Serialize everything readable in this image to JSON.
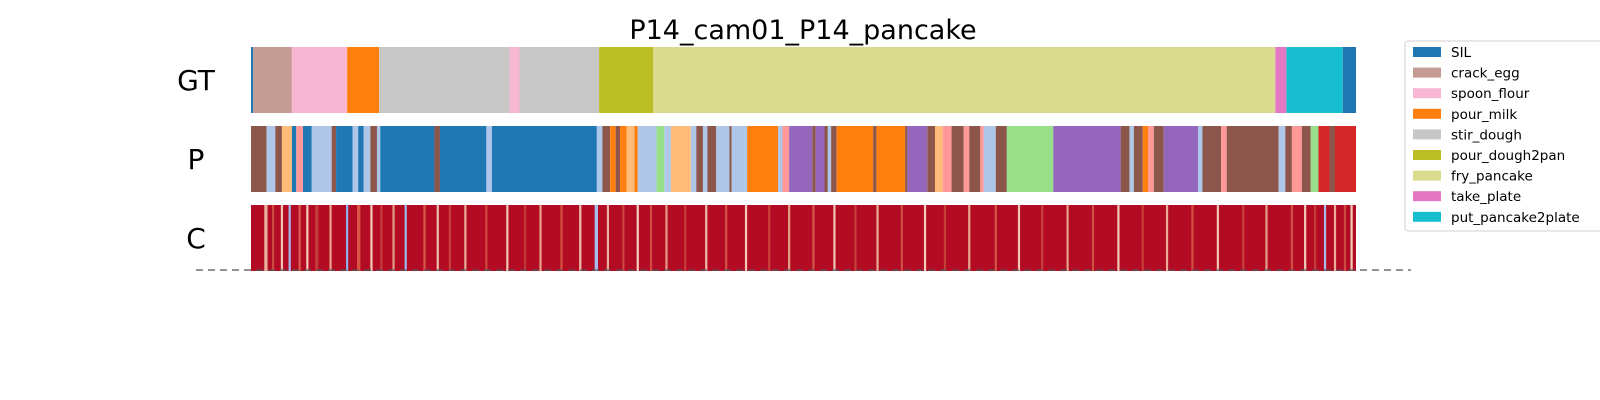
{
  "chart_data": {
    "type": "segmentation-bars",
    "title": "P14_cam01_P14_pancake",
    "x_range": [
      0,
      1
    ],
    "rows": [
      {
        "label": "GT",
        "segments": [
          {
            "start": 0.0,
            "end": 0.002,
            "color": "#1f77b4"
          },
          {
            "start": 0.002,
            "end": 0.037,
            "color": "#c49c94"
          },
          {
            "start": 0.037,
            "end": 0.087,
            "color": "#f7b6d2"
          },
          {
            "start": 0.087,
            "end": 0.116,
            "color": "#ff7f0e"
          },
          {
            "start": 0.116,
            "end": 0.234,
            "color": "#c7c7c7"
          },
          {
            "start": 0.234,
            "end": 0.243,
            "color": "#f7b6d2"
          },
          {
            "start": 0.243,
            "end": 0.315,
            "color": "#c7c7c7"
          },
          {
            "start": 0.315,
            "end": 0.364,
            "color": "#bcbd22"
          },
          {
            "start": 0.364,
            "end": 0.927,
            "color": "#dbdb8d"
          },
          {
            "start": 0.927,
            "end": 0.937,
            "color": "#e377c2"
          },
          {
            "start": 0.937,
            "end": 0.988,
            "color": "#17becf"
          },
          {
            "start": 0.988,
            "end": 1.0,
            "color": "#1f77b4"
          }
        ]
      },
      {
        "label": "P",
        "segments": [
          {
            "start": 0.0,
            "end": 0.014,
            "color": "#8c564b"
          },
          {
            "start": 0.014,
            "end": 0.022,
            "color": "#aec7e8"
          },
          {
            "start": 0.022,
            "end": 0.028,
            "color": "#8c564b"
          },
          {
            "start": 0.028,
            "end": 0.037,
            "color": "#ffbb78"
          },
          {
            "start": 0.037,
            "end": 0.041,
            "color": "#1f77b4"
          },
          {
            "start": 0.041,
            "end": 0.047,
            "color": "#ff9896"
          },
          {
            "start": 0.047,
            "end": 0.055,
            "color": "#1f77b4"
          },
          {
            "start": 0.055,
            "end": 0.073,
            "color": "#aec7e8"
          },
          {
            "start": 0.073,
            "end": 0.077,
            "color": "#8c564b"
          },
          {
            "start": 0.077,
            "end": 0.092,
            "color": "#1f77b4"
          },
          {
            "start": 0.092,
            "end": 0.097,
            "color": "#aec7e8"
          },
          {
            "start": 0.097,
            "end": 0.102,
            "color": "#1f77b4"
          },
          {
            "start": 0.102,
            "end": 0.108,
            "color": "#aec7e8"
          },
          {
            "start": 0.108,
            "end": 0.114,
            "color": "#8c564b"
          },
          {
            "start": 0.114,
            "end": 0.117,
            "color": "#aec7e8"
          },
          {
            "start": 0.117,
            "end": 0.166,
            "color": "#1f77b4"
          },
          {
            "start": 0.166,
            "end": 0.171,
            "color": "#8c564b"
          },
          {
            "start": 0.171,
            "end": 0.213,
            "color": "#1f77b4"
          },
          {
            "start": 0.213,
            "end": 0.218,
            "color": "#aec7e8"
          },
          {
            "start": 0.218,
            "end": 0.313,
            "color": "#1f77b4"
          },
          {
            "start": 0.313,
            "end": 0.318,
            "color": "#aec7e8"
          },
          {
            "start": 0.318,
            "end": 0.325,
            "color": "#8c564b"
          },
          {
            "start": 0.325,
            "end": 0.33,
            "color": "#ff7f0e"
          },
          {
            "start": 0.33,
            "end": 0.334,
            "color": "#8c564b"
          },
          {
            "start": 0.334,
            "end": 0.34,
            "color": "#ff7f0e"
          },
          {
            "start": 0.34,
            "end": 0.347,
            "color": "#ffbb78"
          },
          {
            "start": 0.347,
            "end": 0.35,
            "color": "#ff7f0e"
          },
          {
            "start": 0.35,
            "end": 0.367,
            "color": "#aec7e8"
          },
          {
            "start": 0.367,
            "end": 0.374,
            "color": "#98df8a"
          },
          {
            "start": 0.374,
            "end": 0.38,
            "color": "#aec7e8"
          },
          {
            "start": 0.38,
            "end": 0.398,
            "color": "#ffbb78"
          },
          {
            "start": 0.398,
            "end": 0.403,
            "color": "#aec7e8"
          },
          {
            "start": 0.403,
            "end": 0.409,
            "color": "#8c564b"
          },
          {
            "start": 0.409,
            "end": 0.413,
            "color": "#aec7e8"
          },
          {
            "start": 0.413,
            "end": 0.421,
            "color": "#8c564b"
          },
          {
            "start": 0.421,
            "end": 0.433,
            "color": "#aec7e8"
          },
          {
            "start": 0.433,
            "end": 0.435,
            "color": "#8c564b"
          },
          {
            "start": 0.435,
            "end": 0.449,
            "color": "#aec7e8"
          },
          {
            "start": 0.449,
            "end": 0.477,
            "color": "#ff7f0e"
          },
          {
            "start": 0.477,
            "end": 0.481,
            "color": "#aec7e8"
          },
          {
            "start": 0.481,
            "end": 0.487,
            "color": "#ff9896"
          },
          {
            "start": 0.487,
            "end": 0.508,
            "color": "#9467bd"
          },
          {
            "start": 0.508,
            "end": 0.511,
            "color": "#8c564b"
          },
          {
            "start": 0.511,
            "end": 0.519,
            "color": "#9467bd"
          },
          {
            "start": 0.519,
            "end": 0.522,
            "color": "#8c564b"
          },
          {
            "start": 0.522,
            "end": 0.525,
            "color": "#aec7e8"
          },
          {
            "start": 0.525,
            "end": 0.53,
            "color": "#8c564b"
          },
          {
            "start": 0.53,
            "end": 0.563,
            "color": "#ff7f0e"
          },
          {
            "start": 0.563,
            "end": 0.566,
            "color": "#8c564b"
          },
          {
            "start": 0.566,
            "end": 0.592,
            "color": "#ff7f0e"
          },
          {
            "start": 0.592,
            "end": 0.594,
            "color": "#8c564b"
          },
          {
            "start": 0.594,
            "end": 0.612,
            "color": "#9467bd"
          },
          {
            "start": 0.612,
            "end": 0.619,
            "color": "#8c564b"
          },
          {
            "start": 0.619,
            "end": 0.626,
            "color": "#ffbb78"
          },
          {
            "start": 0.626,
            "end": 0.634,
            "color": "#ff9896"
          },
          {
            "start": 0.634,
            "end": 0.645,
            "color": "#8c564b"
          },
          {
            "start": 0.645,
            "end": 0.65,
            "color": "#ff9896"
          },
          {
            "start": 0.65,
            "end": 0.66,
            "color": "#8c564b"
          },
          {
            "start": 0.66,
            "end": 0.663,
            "color": "#ff9896"
          },
          {
            "start": 0.663,
            "end": 0.674,
            "color": "#aec7e8"
          },
          {
            "start": 0.674,
            "end": 0.684,
            "color": "#8c564b"
          },
          {
            "start": 0.684,
            "end": 0.726,
            "color": "#98df8a"
          },
          {
            "start": 0.726,
            "end": 0.787,
            "color": "#9467bd"
          },
          {
            "start": 0.787,
            "end": 0.795,
            "color": "#8c564b"
          },
          {
            "start": 0.795,
            "end": 0.799,
            "color": "#aec7e8"
          },
          {
            "start": 0.799,
            "end": 0.807,
            "color": "#8c564b"
          },
          {
            "start": 0.807,
            "end": 0.812,
            "color": "#ff7f0e"
          },
          {
            "start": 0.812,
            "end": 0.817,
            "color": "#ff9896"
          },
          {
            "start": 0.817,
            "end": 0.826,
            "color": "#8c564b"
          },
          {
            "start": 0.826,
            "end": 0.857,
            "color": "#9467bd"
          },
          {
            "start": 0.857,
            "end": 0.861,
            "color": "#aec7e8"
          },
          {
            "start": 0.861,
            "end": 0.878,
            "color": "#8c564b"
          },
          {
            "start": 0.878,
            "end": 0.883,
            "color": "#ff9896"
          },
          {
            "start": 0.883,
            "end": 0.93,
            "color": "#8c564b"
          },
          {
            "start": 0.93,
            "end": 0.936,
            "color": "#aec7e8"
          },
          {
            "start": 0.936,
            "end": 0.942,
            "color": "#8c564b"
          },
          {
            "start": 0.942,
            "end": 0.951,
            "color": "#ff9896"
          },
          {
            "start": 0.951,
            "end": 0.959,
            "color": "#8c564b"
          },
          {
            "start": 0.959,
            "end": 0.966,
            "color": "#98df8a"
          },
          {
            "start": 0.966,
            "end": 0.976,
            "color": "#d62728"
          },
          {
            "start": 0.976,
            "end": 0.981,
            "color": "#8c564b"
          },
          {
            "start": 0.981,
            "end": 1.0,
            "color": "#d62728"
          }
        ]
      },
      {
        "label": "C",
        "colormap": "coolwarm",
        "segments": [
          {
            "start": 0.0,
            "end": 1.0,
            "color": "#b40b24"
          },
          {
            "start": 0.012,
            "end": 0.015,
            "color": "#e8b09b"
          },
          {
            "start": 0.019,
            "end": 0.021,
            "color": "#cd4c3f"
          },
          {
            "start": 0.027,
            "end": 0.029,
            "color": "#eec5b3"
          },
          {
            "start": 0.034,
            "end": 0.036,
            "color": "#a3bbf0"
          },
          {
            "start": 0.043,
            "end": 0.045,
            "color": "#d6604d"
          },
          {
            "start": 0.05,
            "end": 0.052,
            "color": "#f0cbb8"
          },
          {
            "start": 0.058,
            "end": 0.061,
            "color": "#c43c3a"
          },
          {
            "start": 0.071,
            "end": 0.073,
            "color": "#e9a58c"
          },
          {
            "start": 0.086,
            "end": 0.088,
            "color": "#8fb1ef"
          },
          {
            "start": 0.096,
            "end": 0.099,
            "color": "#d95845"
          },
          {
            "start": 0.108,
            "end": 0.11,
            "color": "#f2cbb7"
          },
          {
            "start": 0.117,
            "end": 0.119,
            "color": "#c93c3a"
          },
          {
            "start": 0.128,
            "end": 0.13,
            "color": "#e49b82"
          },
          {
            "start": 0.139,
            "end": 0.141,
            "color": "#9db9ee"
          },
          {
            "start": 0.156,
            "end": 0.158,
            "color": "#d45a48"
          },
          {
            "start": 0.168,
            "end": 0.17,
            "color": "#ebc0ab"
          },
          {
            "start": 0.179,
            "end": 0.181,
            "color": "#c7403c"
          },
          {
            "start": 0.193,
            "end": 0.195,
            "color": "#e8ad95"
          },
          {
            "start": 0.212,
            "end": 0.214,
            "color": "#ce4a3e"
          },
          {
            "start": 0.231,
            "end": 0.233,
            "color": "#f0c7b3"
          },
          {
            "start": 0.247,
            "end": 0.249,
            "color": "#c03a38"
          },
          {
            "start": 0.261,
            "end": 0.263,
            "color": "#e6a38a"
          },
          {
            "start": 0.28,
            "end": 0.282,
            "color": "#d1503f"
          },
          {
            "start": 0.297,
            "end": 0.299,
            "color": "#eec1ad"
          },
          {
            "start": 0.311,
            "end": 0.314,
            "color": "#a6bdee"
          },
          {
            "start": 0.322,
            "end": 0.324,
            "color": "#e7b29c"
          },
          {
            "start": 0.336,
            "end": 0.338,
            "color": "#c8463d"
          },
          {
            "start": 0.349,
            "end": 0.351,
            "color": "#f3d0bd"
          },
          {
            "start": 0.361,
            "end": 0.363,
            "color": "#cf4e40"
          },
          {
            "start": 0.375,
            "end": 0.377,
            "color": "#e49a80"
          },
          {
            "start": 0.392,
            "end": 0.394,
            "color": "#c23d39"
          },
          {
            "start": 0.411,
            "end": 0.413,
            "color": "#ecbba6"
          },
          {
            "start": 0.429,
            "end": 0.431,
            "color": "#d45345"
          },
          {
            "start": 0.447,
            "end": 0.449,
            "color": "#f1c9b6"
          },
          {
            "start": 0.468,
            "end": 0.47,
            "color": "#c8423c"
          },
          {
            "start": 0.486,
            "end": 0.488,
            "color": "#e3a187"
          },
          {
            "start": 0.508,
            "end": 0.51,
            "color": "#d05a47"
          },
          {
            "start": 0.527,
            "end": 0.529,
            "color": "#eec6b2"
          },
          {
            "start": 0.546,
            "end": 0.548,
            "color": "#c5403b"
          },
          {
            "start": 0.566,
            "end": 0.568,
            "color": "#e8ab93"
          },
          {
            "start": 0.588,
            "end": 0.59,
            "color": "#cc4f42"
          },
          {
            "start": 0.609,
            "end": 0.611,
            "color": "#f2cdb9"
          },
          {
            "start": 0.627,
            "end": 0.629,
            "color": "#c34039"
          },
          {
            "start": 0.649,
            "end": 0.651,
            "color": "#e6a68c"
          },
          {
            "start": 0.673,
            "end": 0.675,
            "color": "#d35646"
          },
          {
            "start": 0.694,
            "end": 0.696,
            "color": "#efc3ae"
          },
          {
            "start": 0.715,
            "end": 0.717,
            "color": "#c93f3b"
          },
          {
            "start": 0.738,
            "end": 0.74,
            "color": "#e5a088"
          },
          {
            "start": 0.761,
            "end": 0.763,
            "color": "#cd5242"
          },
          {
            "start": 0.784,
            "end": 0.786,
            "color": "#f1cab6"
          },
          {
            "start": 0.806,
            "end": 0.808,
            "color": "#c33e39"
          },
          {
            "start": 0.828,
            "end": 0.83,
            "color": "#e8ac94"
          },
          {
            "start": 0.851,
            "end": 0.853,
            "color": "#d14f41"
          },
          {
            "start": 0.874,
            "end": 0.876,
            "color": "#f0c6b2"
          },
          {
            "start": 0.897,
            "end": 0.899,
            "color": "#c7413b"
          },
          {
            "start": 0.918,
            "end": 0.92,
            "color": "#e4a086"
          },
          {
            "start": 0.941,
            "end": 0.943,
            "color": "#cf5043"
          },
          {
            "start": 0.953,
            "end": 0.955,
            "color": "#f2cdb8"
          },
          {
            "start": 0.962,
            "end": 0.964,
            "color": "#c23c38"
          },
          {
            "start": 0.971,
            "end": 0.973,
            "color": "#a8bfee"
          },
          {
            "start": 0.98,
            "end": 0.982,
            "color": "#e7ad95"
          },
          {
            "start": 0.989,
            "end": 0.991,
            "color": "#cc4a3f"
          },
          {
            "start": 0.995,
            "end": 0.997,
            "color": "#f1c8b4"
          }
        ]
      }
    ],
    "legend": {
      "placement": "right",
      "entries": [
        {
          "label": "SIL",
          "color": "#1f77b4"
        },
        {
          "label": "crack_egg",
          "color": "#c49c94"
        },
        {
          "label": "spoon_flour",
          "color": "#f7b6d2"
        },
        {
          "label": "pour_milk",
          "color": "#ff7f0e"
        },
        {
          "label": "stir_dough",
          "color": "#c7c7c7"
        },
        {
          "label": "pour_dough2pan",
          "color": "#bcbd22"
        },
        {
          "label": "fry_pancake",
          "color": "#dbdb8d"
        },
        {
          "label": "take_plate",
          "color": "#e377c2"
        },
        {
          "label": "put_pancake2plate",
          "color": "#17becf"
        }
      ]
    },
    "baseline": "dashed"
  }
}
